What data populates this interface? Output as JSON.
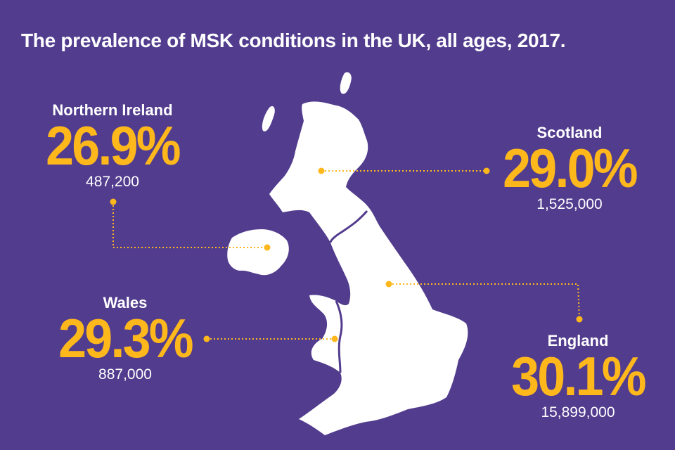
{
  "title": "The prevalence of MSK conditions in the UK, all ages, 2017.",
  "colors": {
    "background": "#523c8e",
    "accent": "#ffb81c",
    "land": "#ffffff",
    "border": "#523c8e"
  },
  "regions": {
    "northern_ireland": {
      "name": "Northern Ireland",
      "percent": "26.9%",
      "count": "487,200"
    },
    "scotland": {
      "name": "Scotland",
      "percent": "29.0%",
      "count": "1,525,000"
    },
    "wales": {
      "name": "Wales",
      "percent": "29.3%",
      "count": "887,000"
    },
    "england": {
      "name": "England",
      "percent": "30.1%",
      "count": "15,899,000"
    }
  }
}
